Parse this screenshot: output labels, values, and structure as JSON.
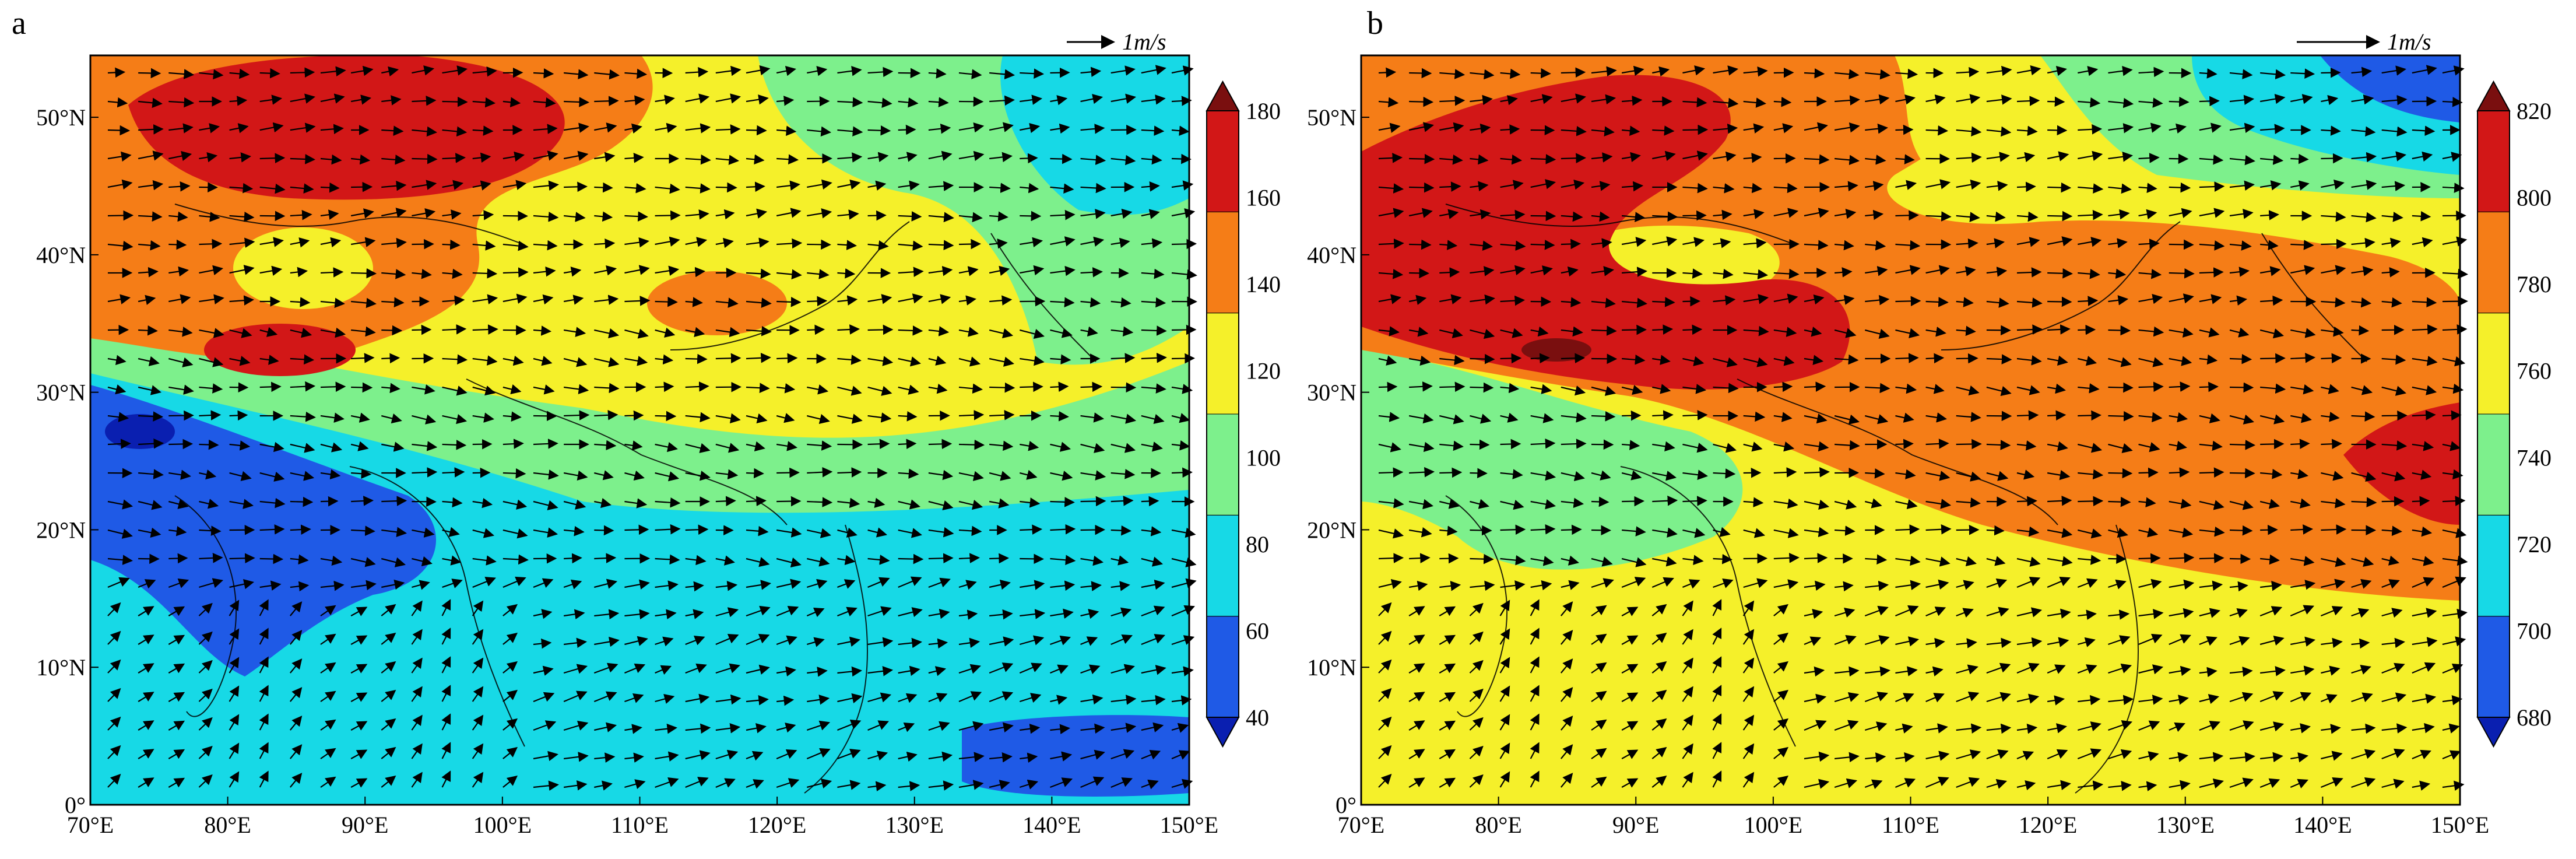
{
  "panels": [
    {
      "id": "a",
      "label": "a",
      "scale_label": "1m/s",
      "colorbar": {
        "ticks": [
          "40",
          "60",
          "80",
          "100",
          "120",
          "140",
          "160",
          "180"
        ],
        "colors": [
          "#0a1fb0",
          "#1f5ae6",
          "#17d9e6",
          "#7df08c",
          "#f5f02a",
          "#f57d17",
          "#d21717",
          "#7a0f0f"
        ]
      },
      "xaxis": [
        "70°E",
        "80°E",
        "90°E",
        "100°E",
        "110°E",
        "120°E",
        "130°E",
        "140°E",
        "150°E"
      ],
      "yaxis": [
        "0°",
        "10°N",
        "20°N",
        "30°N",
        "40°N",
        "50°N"
      ]
    },
    {
      "id": "b",
      "label": "b",
      "scale_label": "1m/s",
      "colorbar": {
        "ticks": [
          "680",
          "700",
          "720",
          "740",
          "760",
          "780",
          "800",
          "820"
        ],
        "colors": [
          "#0a1fb0",
          "#1f5ae6",
          "#17d9e6",
          "#7df08c",
          "#f5f02a",
          "#f57d17",
          "#d21717",
          "#7a0f0f"
        ]
      },
      "xaxis": [
        "70°E",
        "80°E",
        "90°E",
        "100°E",
        "110°E",
        "120°E",
        "130°E",
        "140°E",
        "150°E"
      ],
      "yaxis": [
        "0°",
        "10°N",
        "20°N",
        "30°N",
        "40°N",
        "50°N"
      ]
    }
  ]
}
